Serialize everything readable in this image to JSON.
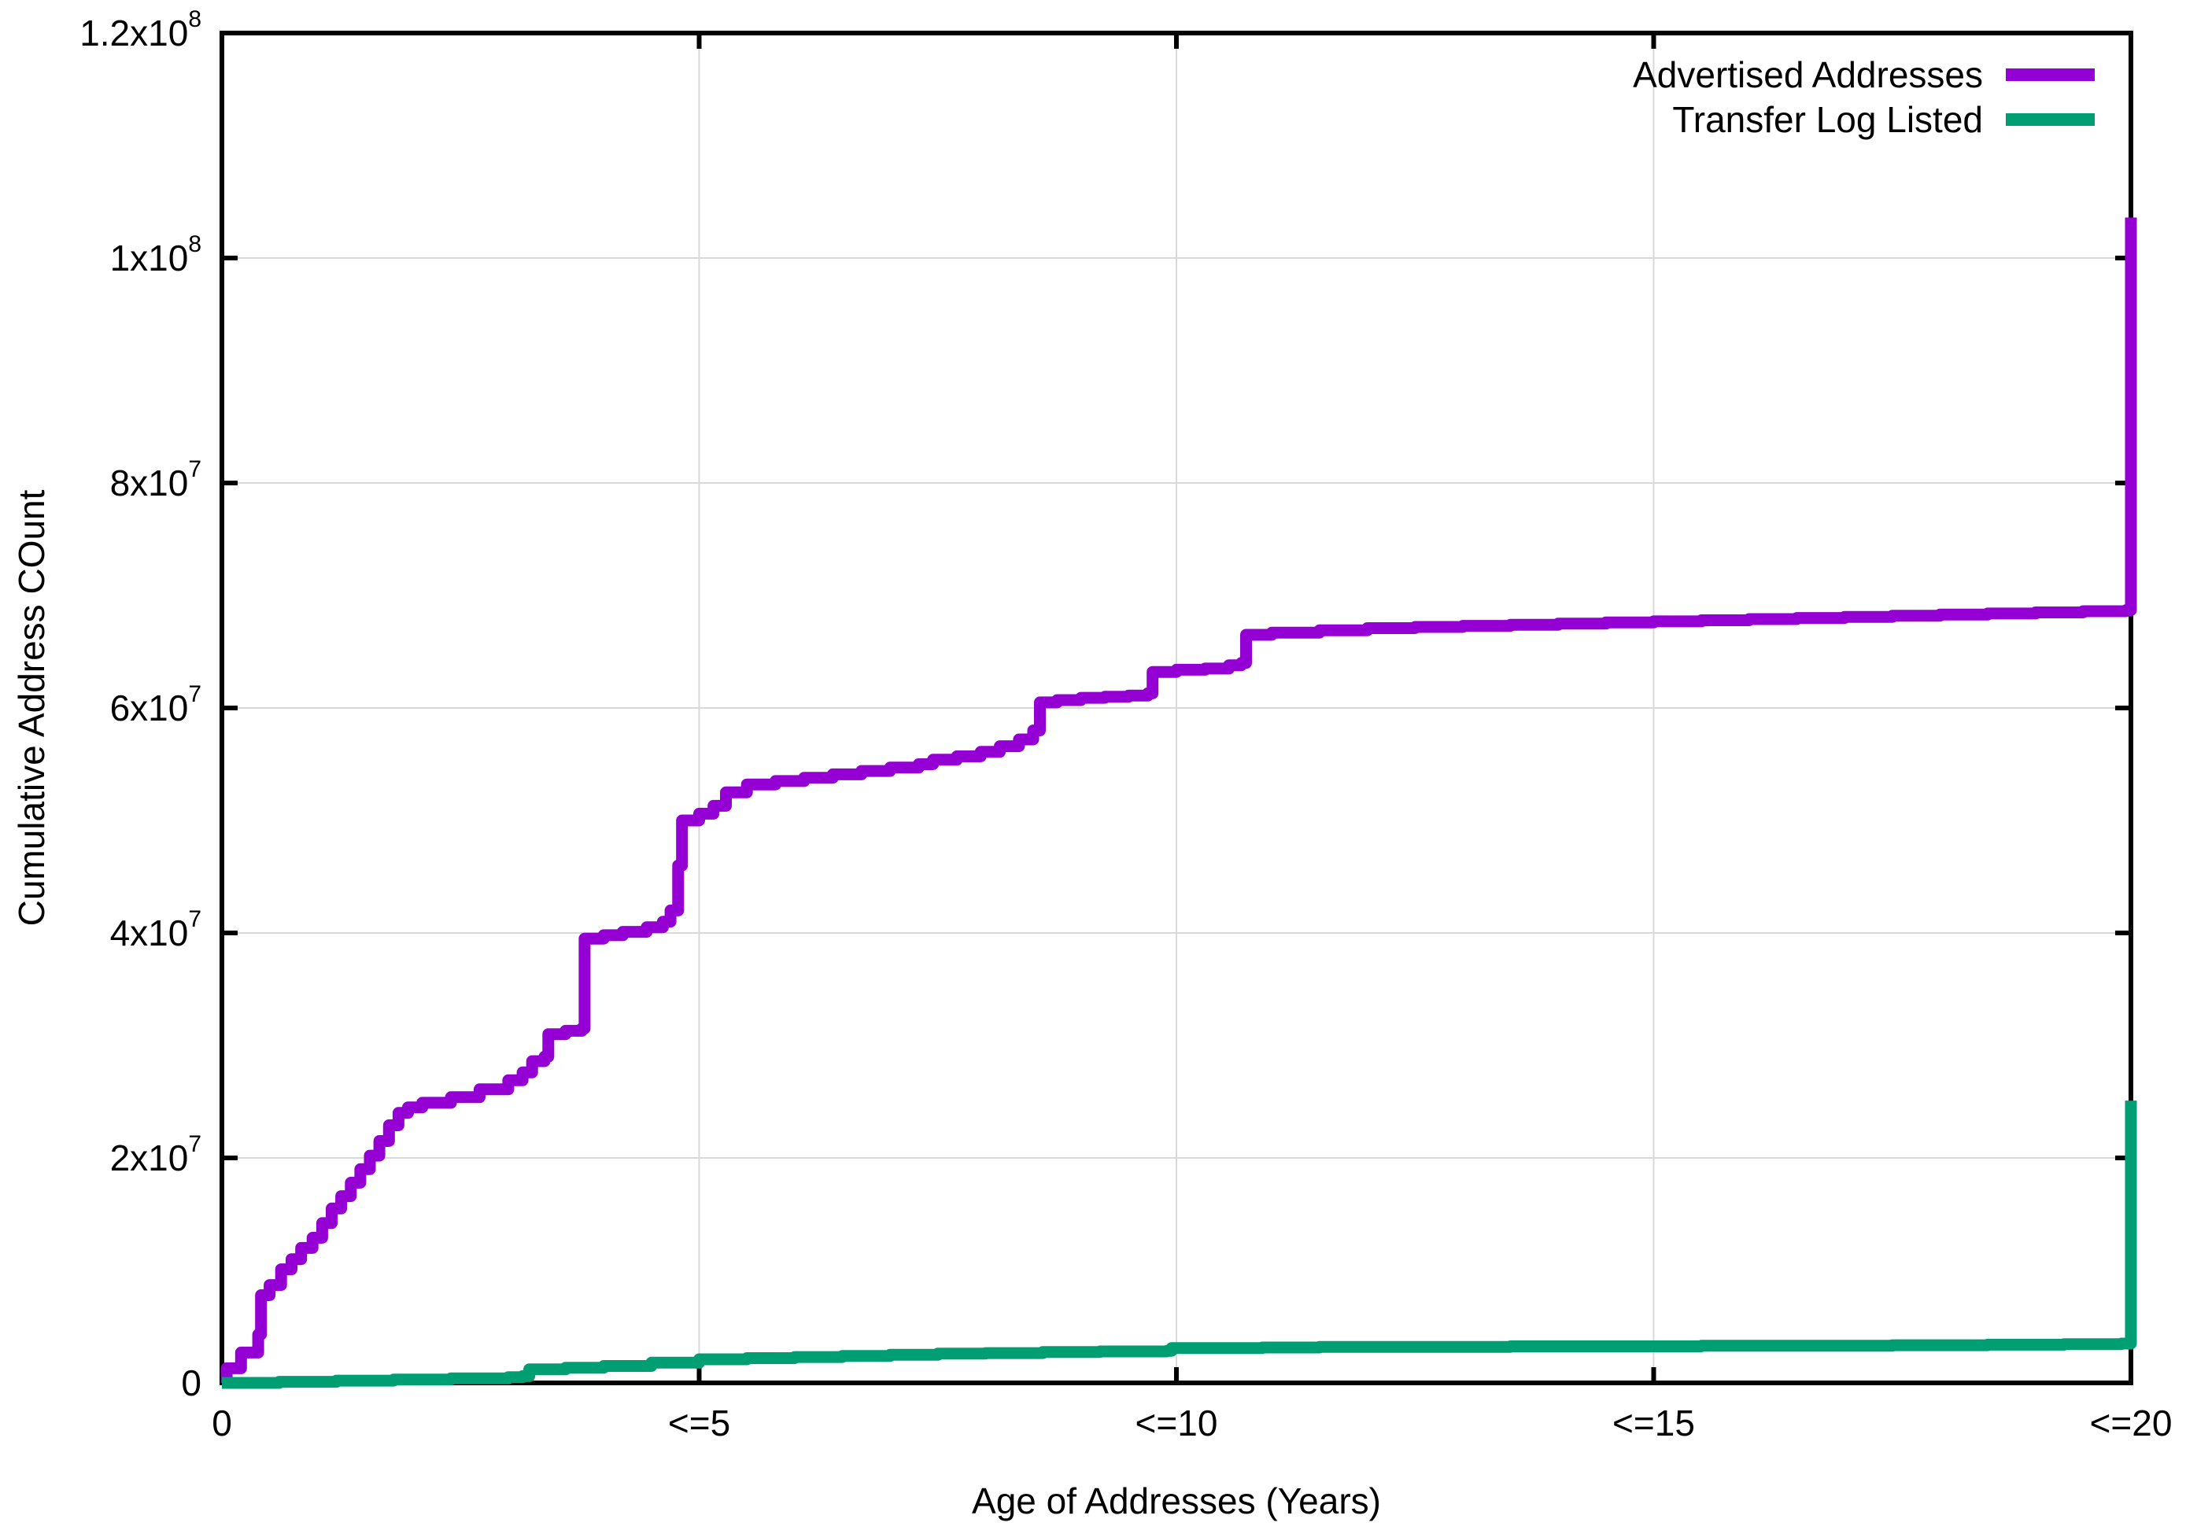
{
  "figure": {
    "background": "#ffffff",
    "axis_color": "#000000",
    "grid_color": "#d9d9d9"
  },
  "chart_data": {
    "type": "line",
    "line_style": "steps-post",
    "title": "",
    "xlabel": "Age of Addresses (Years)",
    "ylabel": "Cumulative Address COunt",
    "xlim": [
      0,
      20
    ],
    "ylim": [
      0,
      120000000
    ],
    "grid": true,
    "legend_position": "top-right-inside",
    "line_width": 15,
    "x_ticks": [
      {
        "value": 0,
        "label": "0"
      },
      {
        "value": 5,
        "label": "<=5"
      },
      {
        "value": 10,
        "label": "<=10"
      },
      {
        "value": 15,
        "label": "<=15"
      },
      {
        "value": 20,
        "label": "<=20"
      }
    ],
    "y_ticks": [
      {
        "value": 0,
        "base": "0",
        "sup": ""
      },
      {
        "value": 20000000,
        "base": "2x10",
        "sup": "7"
      },
      {
        "value": 40000000,
        "base": "4x10",
        "sup": "7"
      },
      {
        "value": 60000000,
        "base": "6x10",
        "sup": "7"
      },
      {
        "value": 80000000,
        "base": "8x10",
        "sup": "7"
      },
      {
        "value": 100000000,
        "base": "1x10",
        "sup": "8"
      },
      {
        "value": 120000000,
        "base": "1.2x10",
        "sup": "8"
      }
    ],
    "series": [
      {
        "name": "Advertised Addresses",
        "color": "#9400D3",
        "points": [
          [
            0,
            0
          ],
          [
            0.05,
            1300000
          ],
          [
            0.2,
            2700000
          ],
          [
            0.38,
            4300000
          ],
          [
            0.41,
            7800000
          ],
          [
            0.5,
            8700000
          ],
          [
            0.62,
            10100000
          ],
          [
            0.73,
            11000000
          ],
          [
            0.83,
            12000000
          ],
          [
            0.95,
            12900000
          ],
          [
            1.05,
            14200000
          ],
          [
            1.15,
            15500000
          ],
          [
            1.25,
            16600000
          ],
          [
            1.35,
            17800000
          ],
          [
            1.45,
            19000000
          ],
          [
            1.55,
            20200000
          ],
          [
            1.65,
            21500000
          ],
          [
            1.75,
            22900000
          ],
          [
            1.85,
            24000000
          ],
          [
            1.95,
            24500000
          ],
          [
            2.1,
            24900000
          ],
          [
            2.4,
            25400000
          ],
          [
            2.7,
            26100000
          ],
          [
            3.0,
            26900000
          ],
          [
            3.15,
            27600000
          ],
          [
            3.25,
            28600000
          ],
          [
            3.38,
            29000000
          ],
          [
            3.42,
            31000000
          ],
          [
            3.6,
            31300000
          ],
          [
            3.77,
            31500000
          ],
          [
            3.8,
            39500000
          ],
          [
            4.0,
            39800000
          ],
          [
            4.2,
            40100000
          ],
          [
            4.45,
            40500000
          ],
          [
            4.62,
            41000000
          ],
          [
            4.7,
            42000000
          ],
          [
            4.78,
            46000000
          ],
          [
            4.82,
            50000000
          ],
          [
            5.0,
            50600000
          ],
          [
            5.15,
            51300000
          ],
          [
            5.28,
            52500000
          ],
          [
            5.5,
            53200000
          ],
          [
            5.8,
            53500000
          ],
          [
            6.1,
            53800000
          ],
          [
            6.4,
            54100000
          ],
          [
            6.7,
            54400000
          ],
          [
            7.0,
            54700000
          ],
          [
            7.3,
            55000000
          ],
          [
            7.45,
            55400000
          ],
          [
            7.7,
            55700000
          ],
          [
            7.95,
            56100000
          ],
          [
            8.15,
            56600000
          ],
          [
            8.35,
            57200000
          ],
          [
            8.5,
            58000000
          ],
          [
            8.57,
            60500000
          ],
          [
            8.75,
            60700000
          ],
          [
            9.0,
            60900000
          ],
          [
            9.25,
            61000000
          ],
          [
            9.5,
            61100000
          ],
          [
            9.7,
            61300000
          ],
          [
            9.75,
            63200000
          ],
          [
            10.0,
            63400000
          ],
          [
            10.3,
            63500000
          ],
          [
            10.55,
            63800000
          ],
          [
            10.68,
            64000000
          ],
          [
            10.73,
            66500000
          ],
          [
            11.0,
            66700000
          ],
          [
            11.5,
            66900000
          ],
          [
            12.0,
            67100000
          ],
          [
            12.5,
            67200000
          ],
          [
            13.0,
            67300000
          ],
          [
            13.5,
            67400000
          ],
          [
            14.0,
            67500000
          ],
          [
            14.5,
            67600000
          ],
          [
            15.0,
            67700000
          ],
          [
            15.5,
            67800000
          ],
          [
            16.0,
            67900000
          ],
          [
            16.5,
            68000000
          ],
          [
            17.0,
            68100000
          ],
          [
            17.5,
            68200000
          ],
          [
            18.0,
            68300000
          ],
          [
            18.5,
            68400000
          ],
          [
            19.0,
            68500000
          ],
          [
            19.5,
            68600000
          ],
          [
            19.95,
            68700000
          ],
          [
            20,
            103600000
          ]
        ]
      },
      {
        "name": "Transfer Log Listed",
        "color": "#009E73",
        "points": [
          [
            0,
            0
          ],
          [
            0.6,
            100000
          ],
          [
            1.2,
            200000
          ],
          [
            1.8,
            300000
          ],
          [
            2.4,
            400000
          ],
          [
            3.0,
            500000
          ],
          [
            3.15,
            600000
          ],
          [
            3.22,
            1200000
          ],
          [
            3.6,
            1350000
          ],
          [
            4.0,
            1500000
          ],
          [
            4.5,
            1800000
          ],
          [
            5.0,
            2100000
          ],
          [
            5.5,
            2200000
          ],
          [
            6.0,
            2300000
          ],
          [
            6.5,
            2400000
          ],
          [
            7.0,
            2500000
          ],
          [
            7.5,
            2600000
          ],
          [
            8.0,
            2650000
          ],
          [
            8.6,
            2750000
          ],
          [
            9.2,
            2800000
          ],
          [
            9.9,
            2850000
          ],
          [
            9.95,
            3100000
          ],
          [
            10.9,
            3150000
          ],
          [
            11.5,
            3200000
          ],
          [
            12.5,
            3200000
          ],
          [
            13.5,
            3250000
          ],
          [
            14.5,
            3250000
          ],
          [
            15.5,
            3300000
          ],
          [
            16.5,
            3300000
          ],
          [
            17.5,
            3350000
          ],
          [
            18.5,
            3400000
          ],
          [
            19.3,
            3450000
          ],
          [
            19.9,
            3500000
          ],
          [
            20,
            25100000
          ]
        ]
      }
    ]
  },
  "legend": {
    "items": [
      {
        "label": "Advertised Addresses",
        "color": "#9400D3"
      },
      {
        "label": "Transfer Log Listed",
        "color": "#009E73"
      }
    ]
  }
}
